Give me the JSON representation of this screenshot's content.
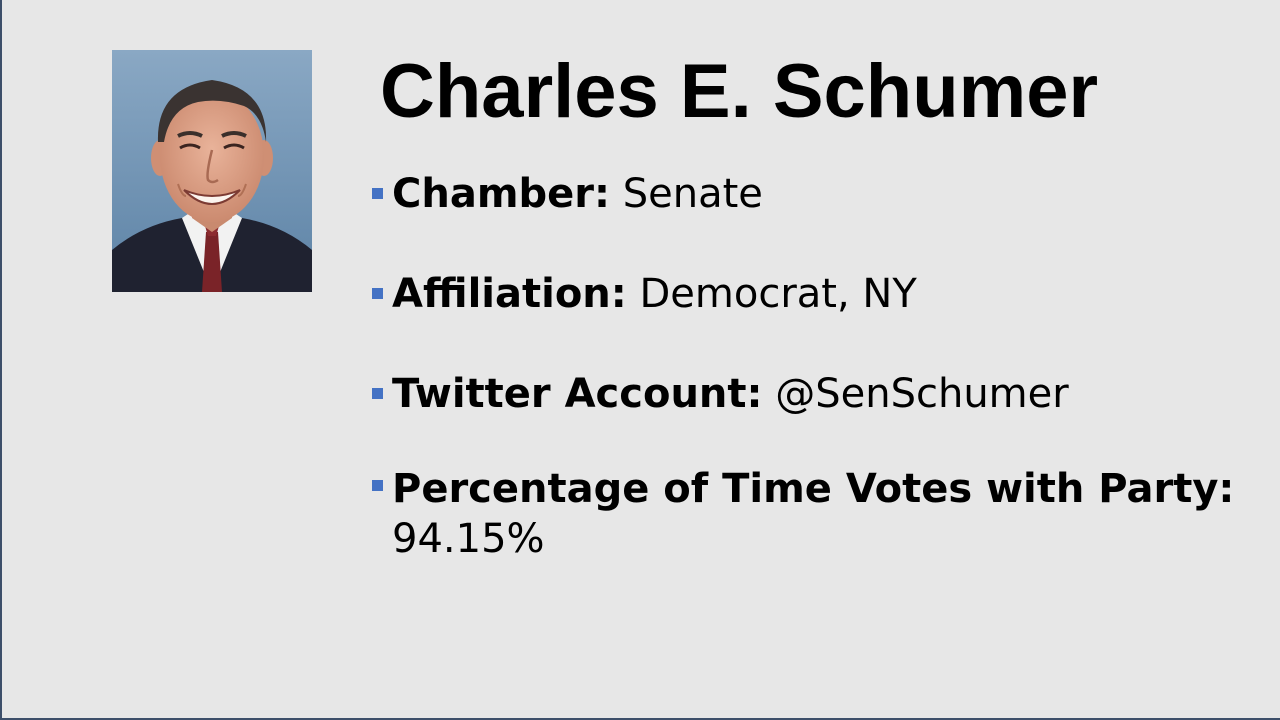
{
  "slide": {
    "title": "Charles E. Schumer",
    "facts": [
      {
        "label": "Chamber:",
        "value": "Senate"
      },
      {
        "label": "Affiliation:",
        "value": "Democrat, NY"
      },
      {
        "label": "Twitter Account:",
        "value": "@SenSchumer"
      },
      {
        "label": "Percentage of Time Votes with Party:",
        "value": "94.15%"
      }
    ],
    "colors": {
      "background": "#e7e7e7",
      "bullet": "#4472c4",
      "frame": "#3d4f6a"
    },
    "icons": {
      "bullet": "square-bullet-icon"
    }
  }
}
